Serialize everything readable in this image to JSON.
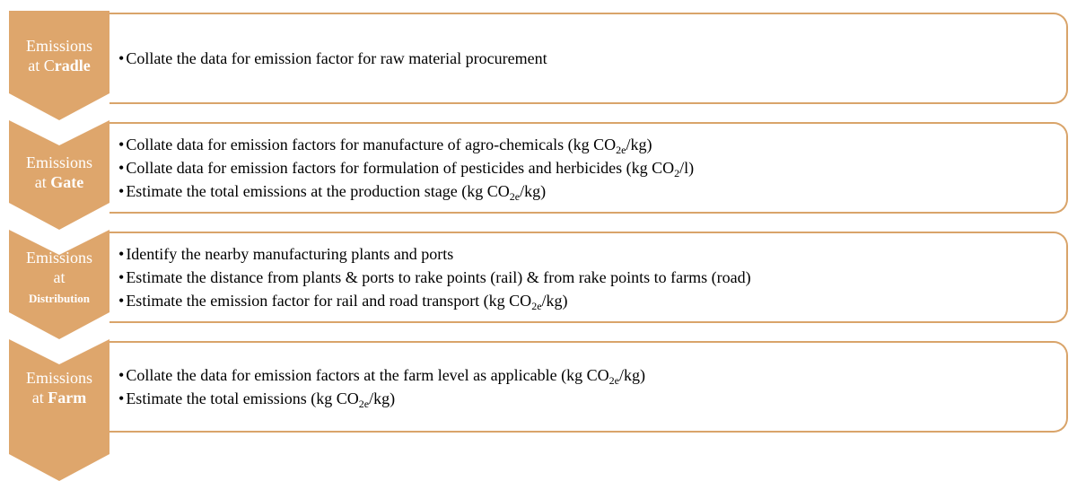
{
  "stages": [
    {
      "label": [
        [
          {
            "text": "Emissions"
          }
        ],
        [
          {
            "text": "at C"
          },
          {
            "text": "radle",
            "bold": true
          }
        ]
      ],
      "items": [
        [
          {
            "text": "Collate the data for emission factor for raw material procurement"
          }
        ]
      ]
    },
    {
      "label": [
        [
          {
            "text": "Emissions"
          }
        ],
        [
          {
            "text": "at "
          },
          {
            "text": "Gate",
            "bold": true
          }
        ]
      ],
      "items": [
        [
          {
            "text": "Collate data for emission factors for manufacture of agro-chemicals (kg CO"
          },
          {
            "text": "2e",
            "sub": true
          },
          {
            "text": "/kg)"
          }
        ],
        [
          {
            "text": "Collate data for emission factors for formulation of pesticides and herbicides (kg CO"
          },
          {
            "text": "2",
            "sub": true
          },
          {
            "text": "/l)"
          }
        ],
        [
          {
            "text": "Estimate the total emissions at the production stage (kg CO"
          },
          {
            "text": "2e",
            "sub": true
          },
          {
            "text": "/kg)"
          }
        ]
      ]
    },
    {
      "label": [
        [
          {
            "text": "Emissions"
          }
        ],
        [
          {
            "text": "at"
          }
        ],
        [
          {
            "text": "Distribution",
            "bold": true,
            "small": true
          }
        ]
      ],
      "items": [
        [
          {
            "text": "Identify the nearby manufacturing plants and ports"
          }
        ],
        [
          {
            "text": "Estimate the distance from plants & ports to rake points (rail) & from rake points to farms (road)"
          }
        ],
        [
          {
            "text": "Estimate the emission factor for rail and road transport (kg CO"
          },
          {
            "text": "2e",
            "sub": true
          },
          {
            "text": "/kg)"
          }
        ]
      ]
    },
    {
      "label": [
        [
          {
            "text": "Emissions"
          }
        ],
        [
          {
            "text": "at "
          },
          {
            "text": "Farm",
            "bold": true
          }
        ]
      ],
      "items": [
        [
          {
            "text": "Collate the data for emission factors at the farm level as applicable (kg CO"
          },
          {
            "text": "2e",
            "sub": true
          },
          {
            "text": "/kg)"
          }
        ],
        [
          {
            "text": "Estimate the total emissions (kg CO"
          },
          {
            "text": "2e",
            "sub": true
          },
          {
            "text": "/kg)"
          }
        ]
      ]
    }
  ]
}
